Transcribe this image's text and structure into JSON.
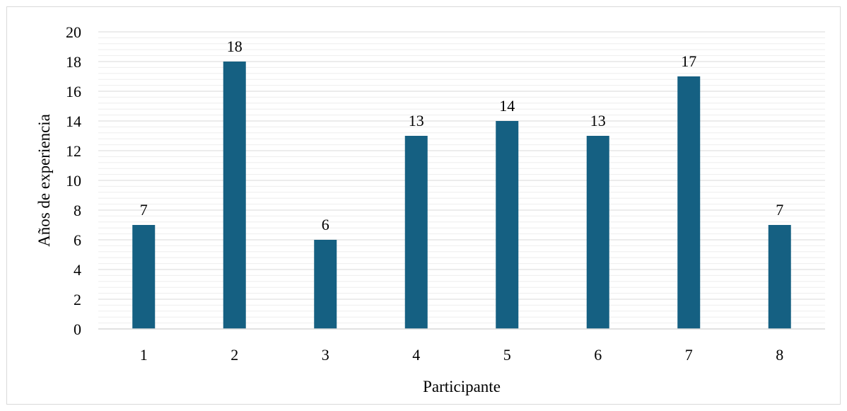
{
  "chart_data": {
    "type": "bar",
    "categories": [
      "1",
      "2",
      "3",
      "4",
      "5",
      "6",
      "7",
      "8"
    ],
    "values": [
      7,
      18,
      6,
      13,
      14,
      13,
      17,
      7
    ],
    "data_labels": [
      "7",
      "18",
      "6",
      "13",
      "14",
      "13",
      "17",
      "7"
    ],
    "title": "",
    "xlabel": "Participante",
    "ylabel": "Años de experiencia",
    "ylim": [
      0,
      20
    ],
    "y_ticks": [
      0,
      2,
      4,
      6,
      8,
      10,
      12,
      14,
      16,
      18,
      20
    ],
    "y_tick_labels": [
      "0",
      "2",
      "4",
      "6",
      "8",
      "10",
      "12",
      "14",
      "16",
      "18",
      "20"
    ],
    "grid": true,
    "minor_grid": true,
    "legend": "none",
    "colors": {
      "bar": "#156082",
      "major_grid": "#d9d9d9",
      "minor_grid": "#eeeeee",
      "axis": "#d9d9d9"
    }
  }
}
